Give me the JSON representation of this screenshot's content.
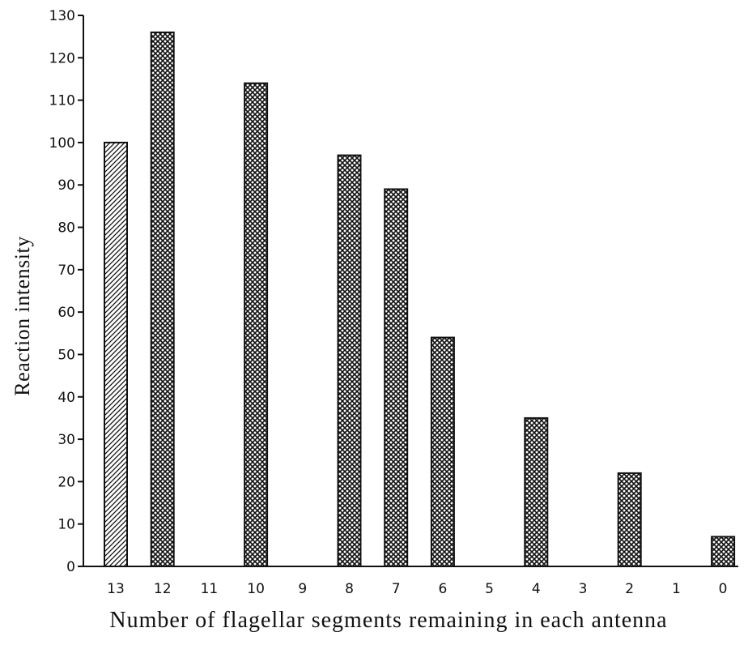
{
  "chart_data": {
    "type": "bar",
    "title": "",
    "xlabel": "Number of flagellar segments remaining in each antenna",
    "ylabel": "Reaction intensity",
    "ylim": [
      0,
      130
    ],
    "yticks": [
      0,
      10,
      20,
      30,
      40,
      50,
      60,
      70,
      80,
      90,
      100,
      110,
      120,
      130
    ],
    "categories": [
      "13",
      "12",
      "11",
      "10",
      "9",
      "8",
      "7",
      "6",
      "5",
      "4",
      "3",
      "2",
      "1",
      "0"
    ],
    "values": [
      100,
      126,
      null,
      114,
      null,
      97,
      89,
      54,
      null,
      35,
      null,
      22,
      null,
      7
    ],
    "bar_patterns": [
      "hatched",
      "crosshatch",
      "crosshatch",
      "crosshatch",
      "crosshatch",
      "crosshatch",
      "crosshatch",
      "crosshatch",
      "crosshatch",
      "crosshatch",
      "crosshatch",
      "crosshatch",
      "crosshatch",
      "crosshatch"
    ],
    "bar_color": "#111111",
    "grid": false,
    "legend": "none"
  }
}
